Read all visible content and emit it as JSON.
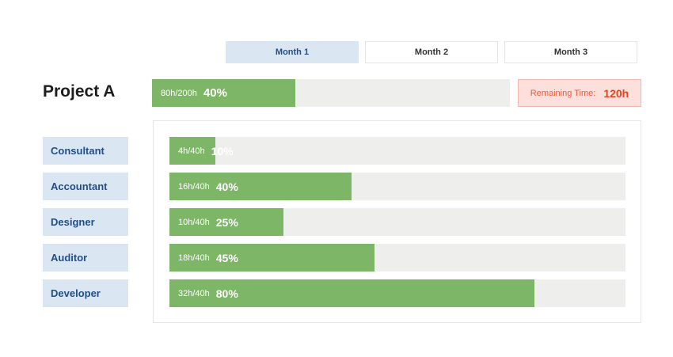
{
  "tabs": [
    {
      "label": "Month 1",
      "active": true
    },
    {
      "label": "Month 2",
      "active": false
    },
    {
      "label": "Month 3",
      "active": false
    }
  ],
  "project": {
    "title": "Project A",
    "hours": "80h/200h",
    "percent_label": "40%",
    "progress": 0.4
  },
  "remaining": {
    "label": "Remaining Time:",
    "value": "120h"
  },
  "roles": [
    {
      "name": "Consultant",
      "hours": "4h/40h",
      "percent_label": "10%",
      "progress": 0.1
    },
    {
      "name": "Accountant",
      "hours": "16h/40h",
      "percent_label": "40%",
      "progress": 0.4
    },
    {
      "name": "Designer",
      "hours": "10h/40h",
      "percent_label": "25%",
      "progress": 0.25
    },
    {
      "name": "Auditor",
      "hours": "18h/40h",
      "percent_label": "45%",
      "progress": 0.45
    },
    {
      "name": "Developer",
      "hours": "32h/40h",
      "percent_label": "80%",
      "progress": 0.8
    }
  ],
  "colors": {
    "fill": "#7db666",
    "track": "#eeeeed",
    "label_bg": "#dbe6f3",
    "label_text": "#1f4f86",
    "alert_bg": "#fde0dc",
    "alert_text": "#e8431f"
  }
}
